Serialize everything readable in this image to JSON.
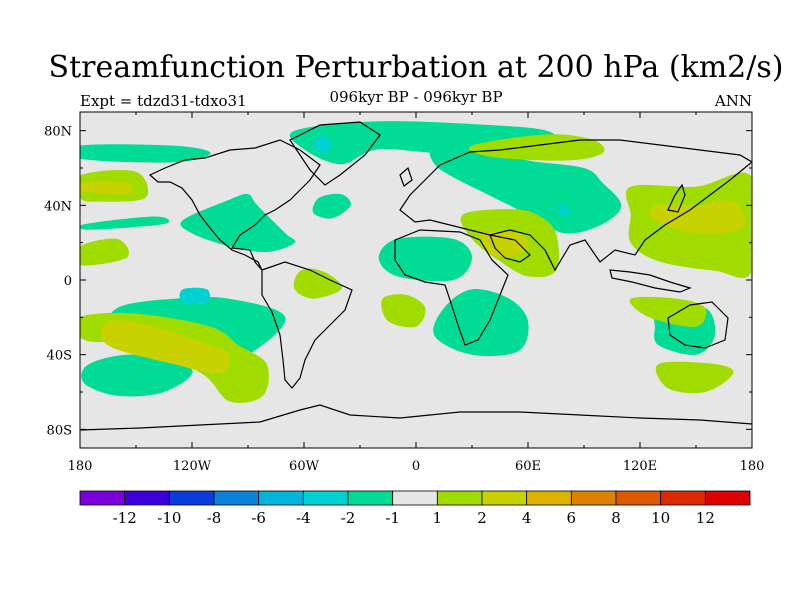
{
  "chart_data": {
    "type": "heatmap",
    "title": "Streamfunction Perturbation at 200 hPa (km2/s)",
    "subtitle_left": "Expt = tdzd31-tdxo31",
    "subtitle_center": "096kyr BP - 096kyr BP",
    "subtitle_right": "ANN",
    "x_ticks": [
      {
        "value": -180,
        "label": "180"
      },
      {
        "value": -120,
        "label": "120W"
      },
      {
        "value": -60,
        "label": "60W"
      },
      {
        "value": 0,
        "label": "0"
      },
      {
        "value": 60,
        "label": "60E"
      },
      {
        "value": 120,
        "label": "120E"
      },
      {
        "value": 180,
        "label": "180"
      }
    ],
    "y_ticks": [
      {
        "value": 80,
        "label": "80N"
      },
      {
        "value": 40,
        "label": "40N"
      },
      {
        "value": 0,
        "label": "0"
      },
      {
        "value": -40,
        "label": "40S"
      },
      {
        "value": -80,
        "label": "80S"
      }
    ],
    "xlim": [
      -180,
      180
    ],
    "ylim": [
      -90,
      90
    ],
    "colorbar": {
      "colors": [
        "#7a00dc",
        "#3c00dc",
        "#0a3cdc",
        "#0a82dc",
        "#00b4dc",
        "#00d2d2",
        "#00dc96",
        "#e6e6e6",
        "#a0dc00",
        "#c8d200",
        "#dcb400",
        "#dc8200",
        "#dc5a00",
        "#dc2a00",
        "#dc0000"
      ],
      "labels": [
        "-12",
        "-10",
        "-8",
        "-6",
        "-4",
        "-2",
        "-1",
        "1",
        "2",
        "4",
        "6",
        "8",
        "10",
        "12"
      ]
    },
    "regions": [
      {
        "level": -1,
        "color": "#00dc96",
        "pts": [
          [
            -20,
            85
          ],
          [
            40,
            83
          ],
          [
            70,
            80
          ],
          [
            70,
            74
          ],
          [
            20,
            68
          ],
          [
            -20,
            70
          ],
          [
            -40,
            62
          ],
          [
            -60,
            70
          ],
          [
            -65,
            80
          ]
        ]
      },
      {
        "level": -2,
        "color": "#00d2d2",
        "pts": [
          [
            -50,
            78
          ],
          [
            -45,
            72
          ],
          [
            -50,
            68
          ],
          [
            -55,
            72
          ]
        ]
      },
      {
        "level": -1,
        "color": "#00dc96",
        "pts": [
          [
            -180,
            72
          ],
          [
            -130,
            72
          ],
          [
            -110,
            68
          ],
          [
            -130,
            63
          ],
          [
            -180,
            65
          ]
        ]
      },
      {
        "level": -1,
        "color": "#00dc96",
        "pts": [
          [
            -177,
            30
          ],
          [
            -140,
            34
          ],
          [
            -135,
            30
          ],
          [
            -175,
            27
          ]
        ]
      },
      {
        "level": -1,
        "color": "#00dc96",
        "pts": [
          [
            -100,
            43
          ],
          [
            -90,
            46
          ],
          [
            -85,
            40
          ],
          [
            -70,
            25
          ],
          [
            -65,
            20
          ],
          [
            -80,
            15
          ],
          [
            -100,
            18
          ],
          [
            -120,
            25
          ],
          [
            -125,
            32
          ]
        ]
      },
      {
        "level": -1,
        "color": "#00dc96",
        "pts": [
          [
            -52,
            44
          ],
          [
            -40,
            46
          ],
          [
            -35,
            40
          ],
          [
            -45,
            33
          ],
          [
            -55,
            36
          ]
        ]
      },
      {
        "level": -1,
        "color": "#00dc96",
        "pts": [
          [
            -10,
            22
          ],
          [
            20,
            22
          ],
          [
            30,
            12
          ],
          [
            20,
            0
          ],
          [
            -10,
            2
          ],
          [
            -20,
            12
          ]
        ]
      },
      {
        "level": -1,
        "color": "#00dc96",
        "pts": [
          [
            10,
            70
          ],
          [
            40,
            70
          ],
          [
            60,
            64
          ],
          [
            90,
            60
          ],
          [
            100,
            52
          ],
          [
            110,
            40
          ],
          [
            100,
            30
          ],
          [
            80,
            25
          ],
          [
            60,
            35
          ],
          [
            40,
            45
          ],
          [
            20,
            55
          ],
          [
            10,
            62
          ]
        ]
      },
      {
        "level": -2,
        "color": "#00d2d2",
        "pts": [
          [
            76,
            40
          ],
          [
            80,
            40
          ],
          [
            82,
            36
          ],
          [
            78,
            35
          ]
        ]
      },
      {
        "level": -1,
        "color": "#00dc96",
        "pts": [
          [
            -160,
            -15
          ],
          [
            -130,
            -10
          ],
          [
            -100,
            -10
          ],
          [
            -70,
            -20
          ],
          [
            -90,
            -40
          ],
          [
            -115,
            -45
          ],
          [
            -140,
            -40
          ],
          [
            -165,
            -30
          ]
        ]
      },
      {
        "level": -2,
        "color": "#00d2d2",
        "pts": [
          [
            -125,
            -5
          ],
          [
            -112,
            -5
          ],
          [
            -112,
            -12
          ],
          [
            -125,
            -12
          ]
        ]
      },
      {
        "level": -1,
        "color": "#00dc96",
        "pts": [
          [
            -175,
            -45
          ],
          [
            -150,
            -40
          ],
          [
            -120,
            -48
          ],
          [
            -135,
            -60
          ],
          [
            -160,
            -62
          ],
          [
            -178,
            -55
          ]
        ]
      },
      {
        "level": -1,
        "color": "#00dc96",
        "pts": [
          [
            30,
            -5
          ],
          [
            50,
            -10
          ],
          [
            60,
            -22
          ],
          [
            55,
            -38
          ],
          [
            30,
            -40
          ],
          [
            10,
            -30
          ],
          [
            15,
            -15
          ]
        ]
      },
      {
        "level": -1,
        "color": "#00dc96",
        "pts": [
          [
            130,
            -15
          ],
          [
            155,
            -15
          ],
          [
            160,
            -30
          ],
          [
            150,
            -40
          ],
          [
            130,
            -35
          ],
          [
            128,
            -25
          ]
        ]
      },
      {
        "level": 1,
        "color": "#a0dc00",
        "pts": [
          [
            -180,
            56
          ],
          [
            -150,
            58
          ],
          0,
          [
            -145,
            44
          ],
          [
            -170,
            42
          ],
          [
            -180,
            44
          ]
        ]
      },
      {
        "level": 2,
        "color": "#c8d200",
        "pts": [
          [
            -180,
            52
          ],
          [
            -155,
            52
          ],
          [
            -155,
            46
          ],
          [
            -180,
            48
          ]
        ]
      },
      {
        "level": 1,
        "color": "#a0dc00",
        "pts": [
          [
            -180,
            18
          ],
          [
            -160,
            22
          ],
          [
            -155,
            12
          ],
          [
            -180,
            8
          ]
        ]
      },
      {
        "level": 1,
        "color": "#a0dc00",
        "pts": [
          [
            -180,
            -20
          ],
          [
            -150,
            -18
          ],
          [
            -110,
            -25
          ],
          [
            -95,
            -35
          ],
          [
            -80,
            -45
          ],
          [
            -82,
            -62
          ],
          [
            -100,
            -65
          ],
          [
            -115,
            -50
          ],
          [
            -150,
            -35
          ],
          [
            -178,
            -32
          ]
        ]
      },
      {
        "level": 2,
        "color": "#c8d200",
        "pts": [
          [
            -165,
            -22
          ],
          [
            -140,
            -25
          ],
          [
            -110,
            -35
          ],
          [
            -100,
            -40
          ],
          [
            -105,
            -50
          ],
          [
            -130,
            -45
          ],
          [
            -165,
            -35
          ]
        ]
      },
      {
        "level": 1,
        "color": "#a0dc00",
        "pts": [
          [
            -63,
            4
          ],
          [
            -55,
            6
          ],
          [
            -45,
            2
          ],
          [
            -40,
            -5
          ],
          [
            -55,
            -10
          ],
          [
            -65,
            -5
          ]
        ]
      },
      {
        "level": 1,
        "color": "#a0dc00",
        "pts": [
          [
            -18,
            -10
          ],
          [
            -5,
            -8
          ],
          [
            5,
            -15
          ],
          [
            0,
            -25
          ],
          [
            -15,
            -22
          ]
        ]
      },
      {
        "level": 1,
        "color": "#a0dc00",
        "pts": [
          [
            25,
            35
          ],
          [
            50,
            38
          ],
          [
            65,
            35
          ],
          [
            75,
            25
          ],
          [
            75,
            5
          ],
          [
            60,
            2
          ],
          [
            45,
            10
          ],
          [
            30,
            22
          ]
        ]
      },
      {
        "level": 2,
        "color": "#c8d200",
        "pts": [
          [
            35,
            25
          ],
          [
            55,
            25
          ],
          [
            60,
            18
          ],
          [
            50,
            12
          ],
          [
            38,
            15
          ]
        ]
      },
      {
        "level": 1,
        "color": "#a0dc00",
        "pts": [
          [
            30,
            72
          ],
          [
            70,
            78
          ],
          [
            95,
            75
          ],
          [
            100,
            68
          ],
          [
            80,
            64
          ],
          [
            40,
            66
          ]
        ]
      },
      {
        "level": 1,
        "color": "#a0dc00",
        "pts": [
          [
            115,
            50
          ],
          [
            150,
            50
          ],
          [
            180,
            55
          ],
          [
            180,
            5
          ],
          [
            160,
            5
          ],
          [
            130,
            10
          ],
          [
            115,
            20
          ],
          [
            115,
            35
          ]
        ]
      },
      {
        "level": 2,
        "color": "#c8d200",
        "pts": [
          [
            128,
            40
          ],
          [
            150,
            40
          ],
          [
            170,
            42
          ],
          [
            175,
            28
          ],
          [
            150,
            25
          ],
          [
            128,
            32
          ]
        ]
      },
      {
        "level": 1,
        "color": "#a0dc00",
        "pts": [
          [
            115,
            -10
          ],
          [
            140,
            -10
          ],
          [
            155,
            -15
          ],
          [
            150,
            -25
          ],
          [
            125,
            -20
          ]
        ]
      },
      {
        "level": 1,
        "color": "#a0dc00",
        "pts": [
          [
            130,
            -45
          ],
          [
            160,
            -45
          ],
          [
            170,
            -50
          ],
          [
            155,
            -60
          ],
          [
            135,
            -58
          ]
        ]
      }
    ]
  }
}
